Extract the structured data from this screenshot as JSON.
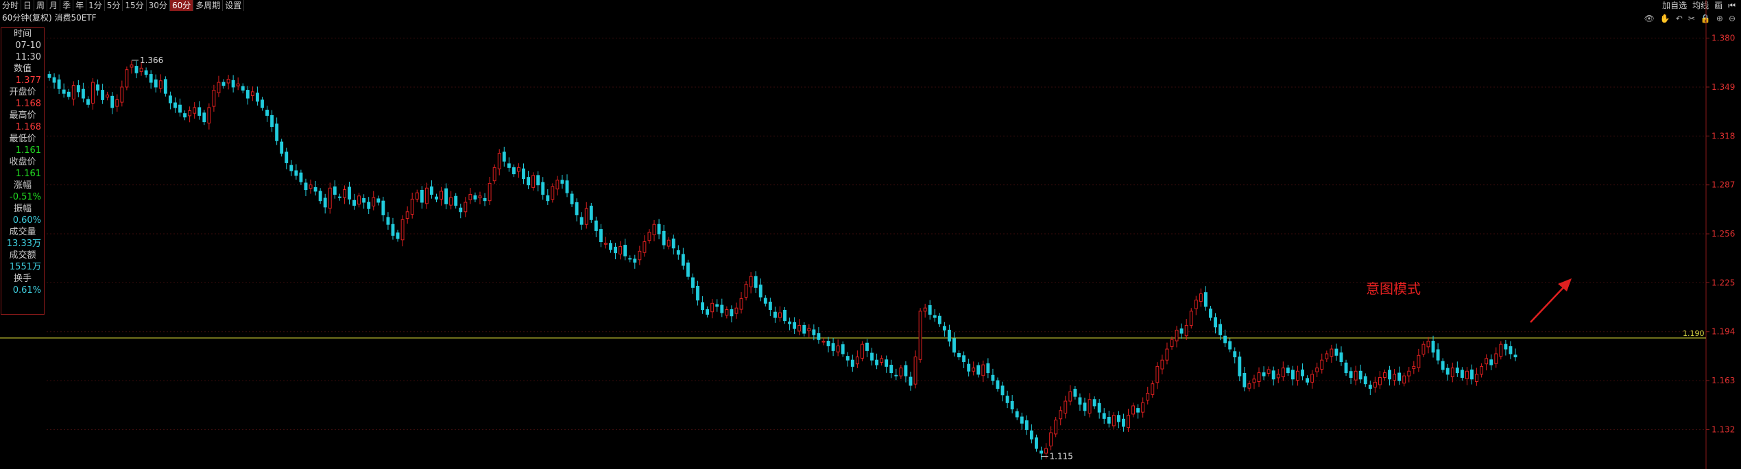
{
  "tabs": [
    "分时",
    "日",
    "周",
    "月",
    "季",
    "年",
    "1分",
    "5分",
    "15分",
    "30分",
    "60分",
    "多周期",
    "设置"
  ],
  "active_tab": "60分",
  "subtitle": "60分钟(复权)  消费50ETF",
  "infobox": [
    {
      "label": "时间",
      "value": "07-10",
      "color": "#cccccc"
    },
    {
      "label": "",
      "value": "11:30",
      "color": "#cccccc"
    },
    {
      "label": "数值",
      "value": "1.377",
      "color": "#ff3b3b"
    },
    {
      "label": "开盘价",
      "value": "1.168",
      "color": "#ff3b3b"
    },
    {
      "label": "最高价",
      "value": "1.168",
      "color": "#ff3b3b"
    },
    {
      "label": "最低价",
      "value": "1.161",
      "color": "#22dd22"
    },
    {
      "label": "收盘价",
      "value": "1.161",
      "color": "#22dd22"
    },
    {
      "label": "涨幅",
      "value": "-0.51%",
      "color": "#22dd22"
    },
    {
      "label": "振幅",
      "value": "0.60%",
      "color": "#3fd0e0"
    },
    {
      "label": "成交量",
      "value": "13.33万",
      "color": "#3fd0e0"
    },
    {
      "label": "成交额",
      "value": "1551万",
      "color": "#3fd0e0"
    },
    {
      "label": "换手",
      "value": "0.61%",
      "color": "#3fd0e0"
    }
  ],
  "topright": [
    "加自选",
    "均线",
    "画"
  ],
  "toolicons": [
    "eye-icon",
    "hand-icon",
    "undo-icon",
    "scissors-icon",
    "lock-icon",
    "zoom-in-icon",
    "zoom-out-icon"
  ],
  "annotation": {
    "text": "意图模式",
    "color": "#e02020"
  },
  "chart_data": {
    "type": "candlestick",
    "ylim": [
      1.107,
      1.392
    ],
    "y_ticks": [
      "1.380",
      "1.349",
      "1.318",
      "1.287",
      "1.256",
      "1.225",
      "1.194",
      "1.163",
      "1.132"
    ],
    "y_tick_values": [
      1.38,
      1.349,
      1.318,
      1.287,
      1.256,
      1.225,
      1.194,
      1.163,
      1.132
    ],
    "hline": {
      "value": 1.19,
      "label": "1.190",
      "color": "#c8c832"
    },
    "high_marker": {
      "value": 1.366,
      "label": "1.366"
    },
    "low_marker": {
      "value": 1.115,
      "label": "1.115"
    },
    "up_color": "#e02020",
    "down_color": "#22ccdd",
    "close_series": [
      1.355,
      1.352,
      1.348,
      1.345,
      1.343,
      1.35,
      1.346,
      1.342,
      1.338,
      1.352,
      1.347,
      1.341,
      1.344,
      1.336,
      1.341,
      1.349,
      1.36,
      1.363,
      1.358,
      1.361,
      1.357,
      1.352,
      1.349,
      1.353,
      1.345,
      1.339,
      1.336,
      1.333,
      1.33,
      1.334,
      1.336,
      1.331,
      1.327,
      1.336,
      1.347,
      1.352,
      1.35,
      1.354,
      1.349,
      1.351,
      1.347,
      1.342,
      1.346,
      1.34,
      1.336,
      1.331,
      1.324,
      1.315,
      1.307,
      1.301,
      1.296,
      1.293,
      1.289,
      1.284,
      1.287,
      1.283,
      1.277,
      1.273,
      1.285,
      1.281,
      1.279,
      1.284,
      1.278,
      1.274,
      1.28,
      1.276,
      1.272,
      1.279,
      1.276,
      1.268,
      1.262,
      1.255,
      1.253,
      1.265,
      1.27,
      1.278,
      1.282,
      1.276,
      1.285,
      1.281,
      1.278,
      1.283,
      1.275,
      1.279,
      1.274,
      1.27,
      1.276,
      1.281,
      1.278,
      1.28,
      1.277,
      1.288,
      1.298,
      1.307,
      1.302,
      1.298,
      1.294,
      1.298,
      1.291,
      1.287,
      1.293,
      1.287,
      1.281,
      1.277,
      1.286,
      1.29,
      1.288,
      1.282,
      1.275,
      1.268,
      1.262,
      1.272,
      1.265,
      1.258,
      1.251,
      1.25,
      1.246,
      1.244,
      1.248,
      1.242,
      1.24,
      1.238,
      1.245,
      1.251,
      1.257,
      1.262,
      1.256,
      1.249,
      1.252,
      1.247,
      1.243,
      1.236,
      1.229,
      1.222,
      1.214,
      1.208,
      1.205,
      1.212,
      1.21,
      1.206,
      1.208,
      1.204,
      1.209,
      1.215,
      1.224,
      1.229,
      1.222,
      1.216,
      1.212,
      1.208,
      1.203,
      1.206,
      1.201,
      1.199,
      1.196,
      1.198,
      1.193,
      1.196,
      1.192,
      1.189,
      1.188,
      1.185,
      1.182,
      1.185,
      1.18,
      1.176,
      1.172,
      1.178,
      1.186,
      1.182,
      1.176,
      1.173,
      1.177,
      1.172,
      1.168,
      1.166,
      1.171,
      1.166,
      1.16,
      1.178,
      1.207,
      1.209,
      1.205,
      1.203,
      1.199,
      1.195,
      1.188,
      1.181,
      1.178,
      1.175,
      1.169,
      1.171,
      1.167,
      1.173,
      1.168,
      1.163,
      1.158,
      1.154,
      1.149,
      1.145,
      1.14,
      1.136,
      1.132,
      1.126,
      1.12,
      1.117,
      1.12,
      1.13,
      1.138,
      1.144,
      1.15,
      1.156,
      1.153,
      1.148,
      1.144,
      1.151,
      1.147,
      1.143,
      1.139,
      1.136,
      1.141,
      1.137,
      1.134,
      1.141,
      1.147,
      1.143,
      1.149,
      1.155,
      1.161,
      1.172,
      1.176,
      1.183,
      1.189,
      1.195,
      1.193,
      1.198,
      1.207,
      1.214,
      1.218,
      1.21,
      1.203,
      1.197,
      1.192,
      1.187,
      1.183,
      1.178,
      1.166,
      1.159,
      1.161,
      1.164,
      1.168,
      1.166,
      1.17,
      1.164,
      1.167,
      1.171,
      1.168,
      1.164,
      1.169,
      1.166,
      1.162,
      1.167,
      1.171,
      1.176,
      1.18,
      1.183,
      1.179,
      1.175,
      1.168,
      1.165,
      1.169,
      1.164,
      1.161,
      1.158,
      1.162,
      1.165,
      1.168,
      1.164,
      1.167,
      1.163,
      1.166,
      1.169,
      1.172,
      1.179,
      1.186,
      1.188,
      1.181,
      1.176,
      1.17,
      1.167,
      1.171,
      1.168,
      1.165,
      1.169,
      1.164,
      1.167,
      1.172,
      1.177,
      1.173,
      1.18,
      1.186,
      1.183,
      1.18,
      1.178
    ]
  }
}
